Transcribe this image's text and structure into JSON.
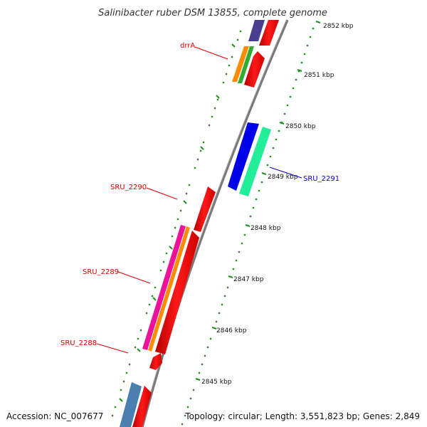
{
  "title": "Salinibacter ruber DSM 13855, complete genome",
  "footer": {
    "accession": "Accession: NC_007677",
    "summary": "Topology: circular; Length: 3,551,823 bp; Genes: 2,849"
  },
  "kbp_labels": [
    "2852 kbp",
    "2851 kbp",
    "2850 kbp",
    "2849 kbp",
    "2848 kbp",
    "2847 kbp",
    "2846 kbp",
    "2845 kbp"
  ],
  "gene_labels": [
    {
      "id": "drrA",
      "text": "drrA",
      "color": "#e00000"
    },
    {
      "id": "SRU_2290",
      "text": "SRU_2290",
      "color": "#e00000"
    },
    {
      "id": "SRU_2289",
      "text": "SRU_2289",
      "color": "#e00000"
    },
    {
      "id": "SRU_2288",
      "text": "SRU_2288",
      "color": "#e00000"
    },
    {
      "id": "SRU_2291",
      "text": "SRU_2291",
      "color": "#0000cc"
    }
  ],
  "colors": {
    "backbone": "#8c8c8c",
    "tick": "#1f8f1f",
    "cds_red": "#ff0000",
    "blue": "#0000e6",
    "aquamarine": "#22ee99",
    "purple": "#4b3d8f",
    "orange": "#ff8c00",
    "green": "#33aa33",
    "magenta": "#ee1199",
    "steelblue": "#4a7fb0"
  }
}
